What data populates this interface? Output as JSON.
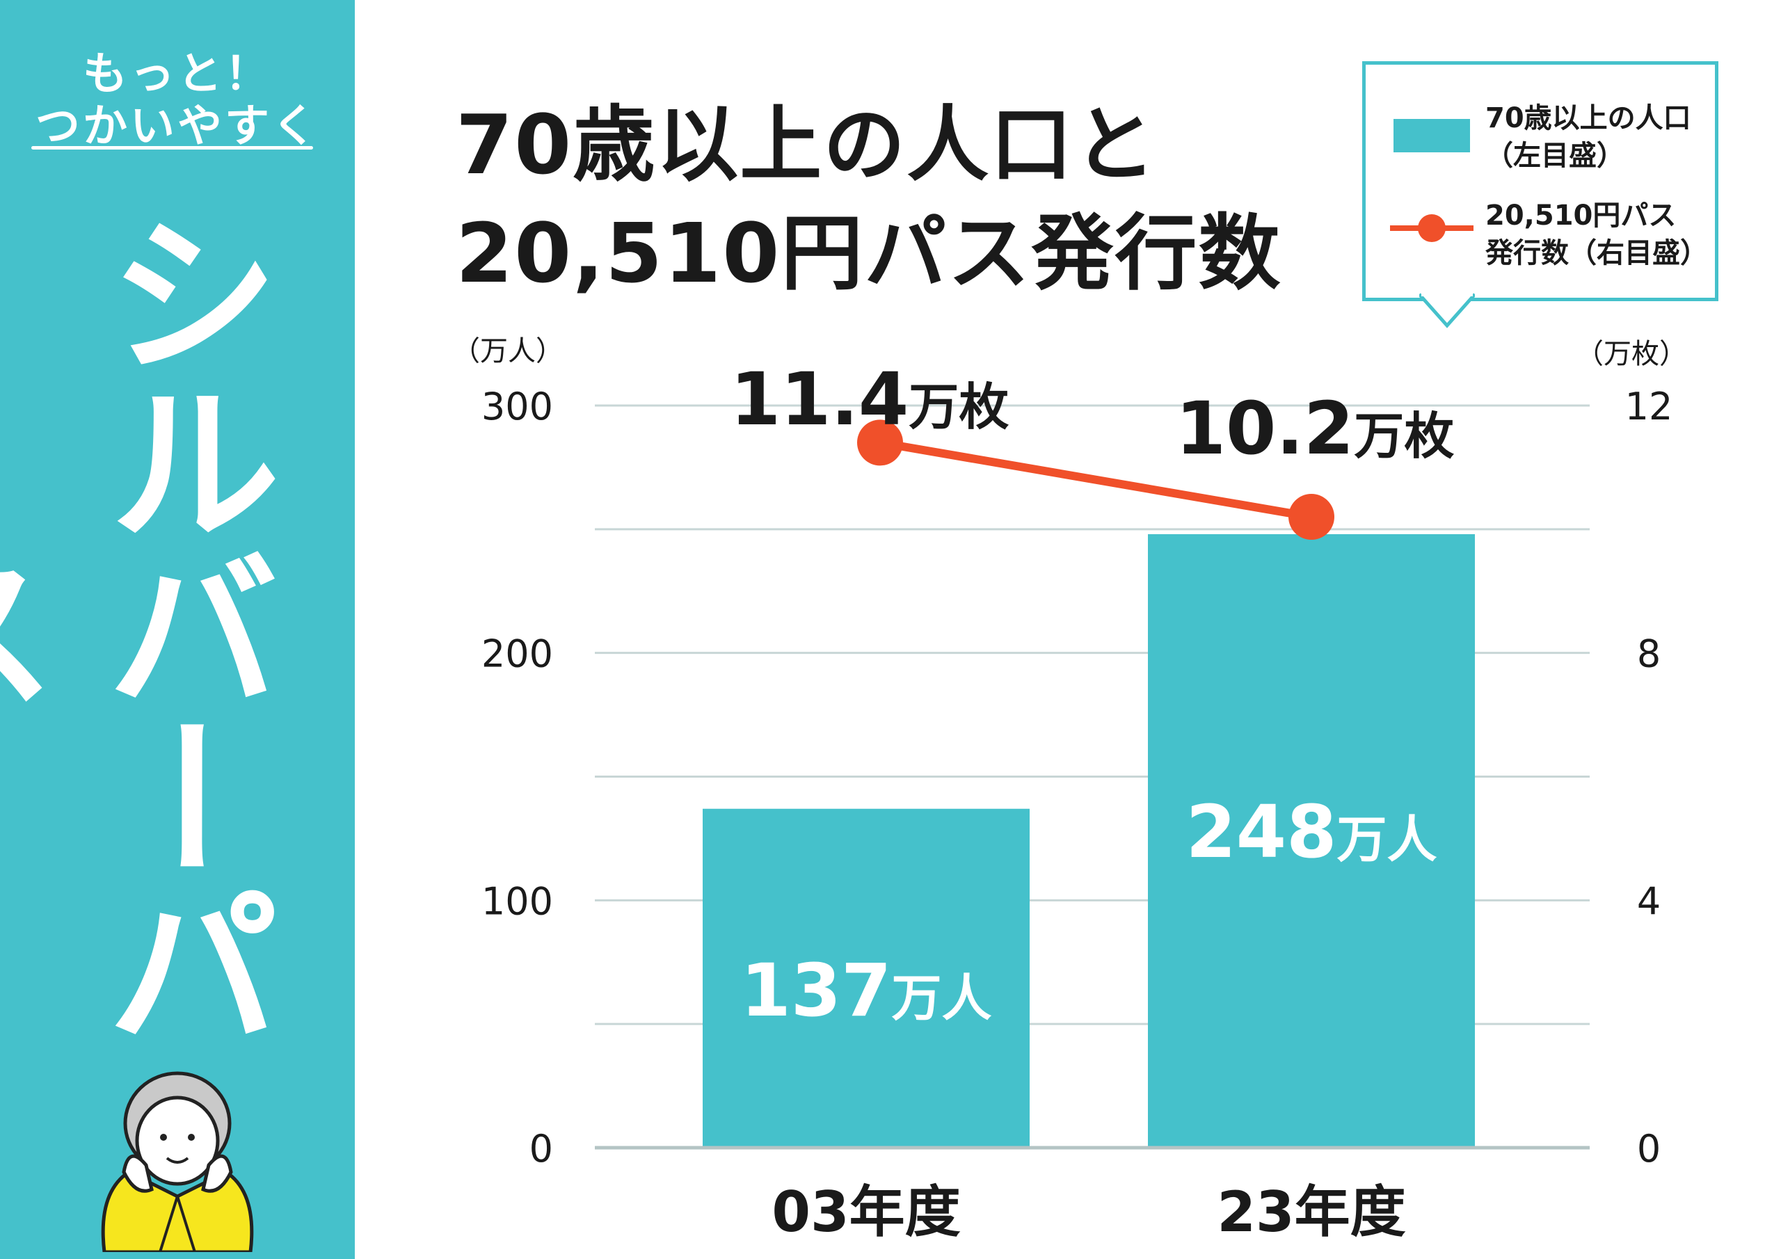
{
  "sidebar": {
    "tagline_line1": "もっと！",
    "tagline_line2": "つかいやすく",
    "vertical_title": "シルバーパス",
    "illustration": "elderly-person-icon"
  },
  "title": {
    "line1": "70歳以上の人口と",
    "line2": "20,510円パス発行数"
  },
  "legend": {
    "bar_label_line1": "70歳以上の人口",
    "bar_label_line2": "（左目盛）",
    "line_label_line1": "20,510円パス",
    "line_label_line2": "発行数（右目盛）"
  },
  "colors": {
    "accent": "#45c1cb",
    "line": "#f0502a",
    "gridline": "#c8d6d6",
    "text": "#1a1a1a"
  },
  "chart_data": {
    "type": "bar",
    "categories": [
      "03年度",
      "23年度"
    ],
    "series": [
      {
        "name": "70歳以上の人口（左目盛）",
        "type": "bar",
        "axis": "left",
        "values": [
          137,
          248
        ],
        "labels": [
          {
            "num": "137",
            "unit": "万人"
          },
          {
            "num": "248",
            "unit": "万人"
          }
        ]
      },
      {
        "name": "20,510円パス発行数（右目盛）",
        "type": "line",
        "axis": "right",
        "values": [
          11.4,
          10.2
        ],
        "labels": [
          {
            "num": "11.4",
            "unit": "万枚"
          },
          {
            "num": "10.2",
            "unit": "万枚"
          }
        ]
      }
    ],
    "left_axis": {
      "unit": "（万人）",
      "ticks": [
        "0",
        "100",
        "200",
        "300"
      ],
      "range": [
        0,
        300
      ]
    },
    "right_axis": {
      "unit": "（万枚）",
      "ticks": [
        "0",
        "4",
        "8",
        "12"
      ],
      "range": [
        0,
        12
      ]
    },
    "grid": true,
    "grid_step_left": 50
  }
}
